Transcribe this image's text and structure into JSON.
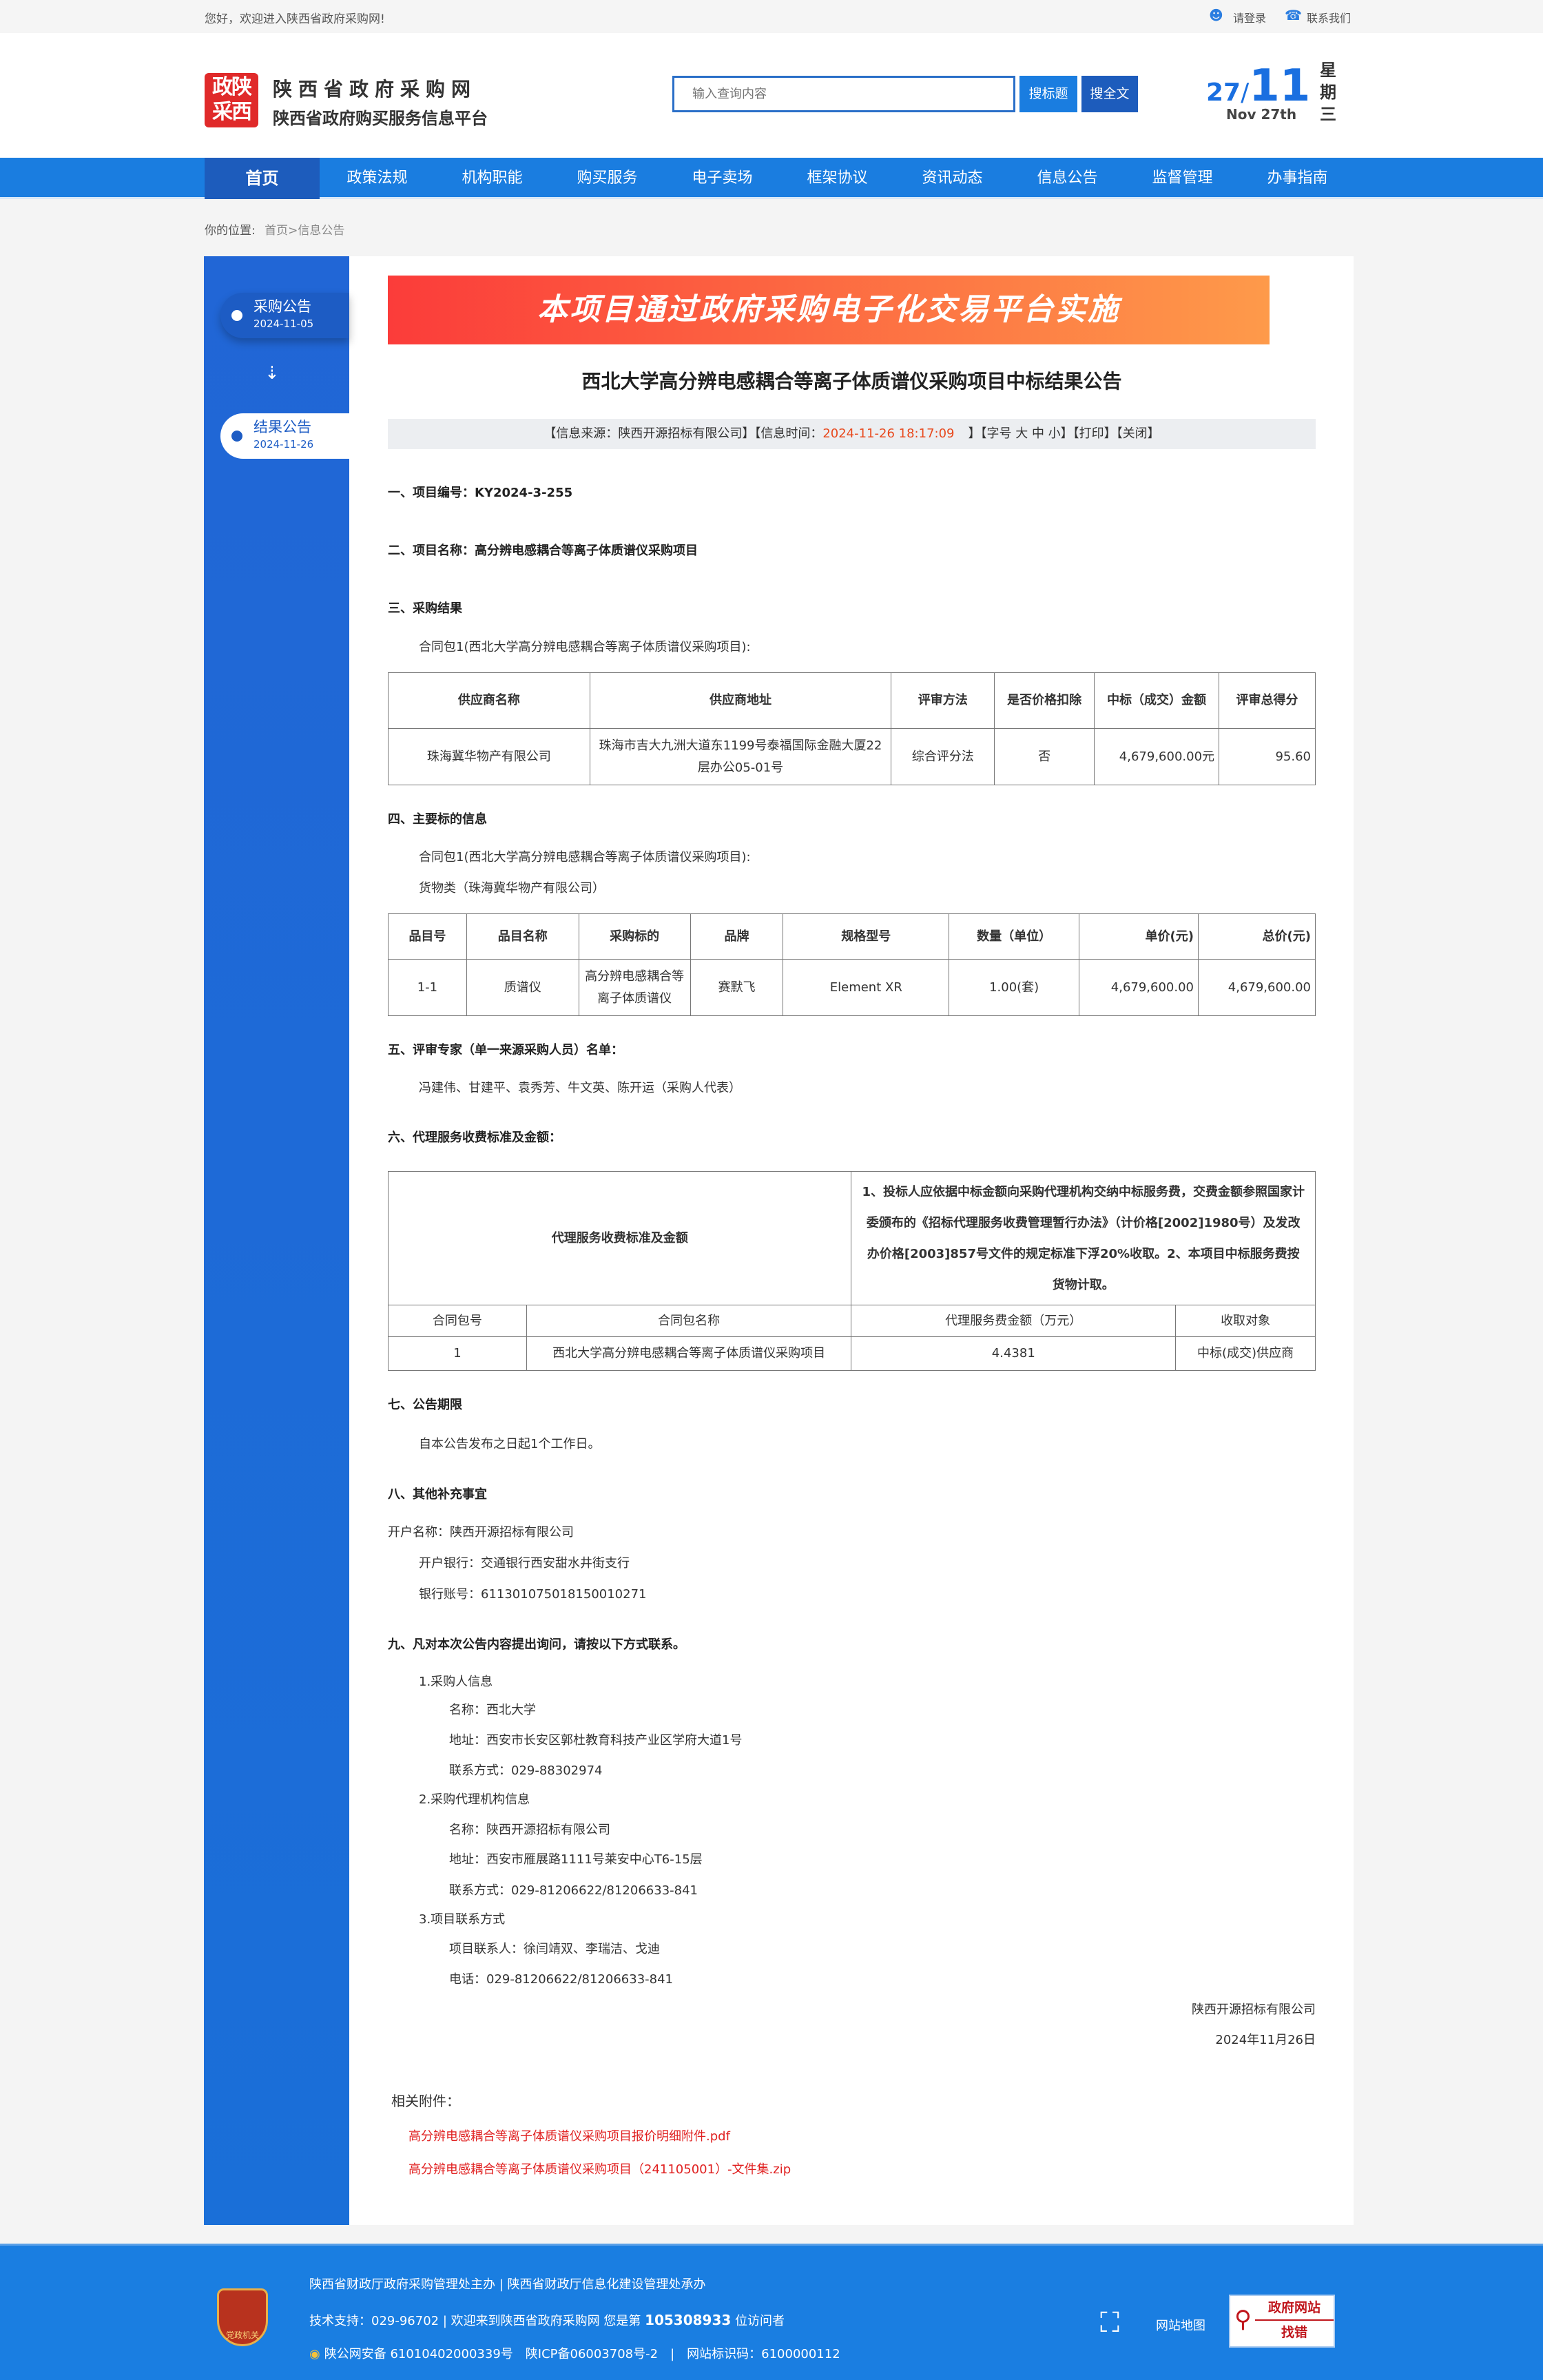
{
  "topbar": {
    "welcome": "您好，欢迎进入陕西省政府采购网!",
    "login": "请登录",
    "contact": "联系我们"
  },
  "header": {
    "logo_text": "政陕采西",
    "site_name": "陕西省政府采购网",
    "subtitle": "陕西省政府购买服务信息平台",
    "search_placeholder": "输入查询内容",
    "search_title_btn": "搜标题",
    "search_full_btn": "搜全文",
    "date_day": "27",
    "date_sep": "/",
    "date_month": "11",
    "date_en": "Nov 27th",
    "weekday": "星期三"
  },
  "nav": [
    "首页",
    "政策法规",
    "机构职能",
    "购买服务",
    "电子卖场",
    "框架协议",
    "资讯动态",
    "信息公告",
    "监督管理",
    "办事指南"
  ],
  "breadcrumb": {
    "label": "你的位置:",
    "home": "首页",
    "current": ">信息公告"
  },
  "sidebar": [
    {
      "label": "采购公告",
      "date": "2024-11-05"
    },
    {
      "label": "结果公告",
      "date": "2024-11-26"
    }
  ],
  "banner": "本项目通过政府采购电子化交易平台实施",
  "title": "西北大学高分辨电感耦合等离子体质谱仪采购项目中标结果公告",
  "info": {
    "source": "【信息来源：陕西开源招标有限公司】【信息时间：",
    "time": "2024-11-26 18:17:09",
    "rest": "】【字号 大 中 小】【打印】【关闭】",
    "color_time": "#e8481c"
  },
  "s1": "一、项目编号：KY2024-3-255",
  "s2": "二、项目名称：高分辨电感耦合等离子体质谱仪采购项目",
  "s3": {
    "title": "三、采购结果",
    "pkg": "合同包1(西北大学高分辨电感耦合等离子体质谱仪采购项目):",
    "headers": [
      "供应商名称",
      "供应商地址",
      "评审方法",
      "是否价格扣除",
      "中标（成交）金额",
      "评审总得分"
    ],
    "row": [
      "珠海冀华物产有限公司",
      "珠海市吉大九洲大道东1199号泰福国际金融大厦22层办公05-01号",
      "综合评分法",
      "否",
      "4,679,600.00元",
      "95.60"
    ]
  },
  "s4": {
    "title": "四、主要标的信息",
    "pkg": "合同包1(西北大学高分辨电感耦合等离子体质谱仪采购项目):",
    "cat": "货物类（珠海冀华物产有限公司）",
    "headers": [
      "品目号",
      "品目名称",
      "采购标的",
      "品牌",
      "规格型号",
      "数量（单位）",
      "单价(元)",
      "总价(元)"
    ],
    "row": [
      "1-1",
      "质谱仪",
      "高分辨电感耦合等离子体质谱仪",
      "赛默飞",
      "Element XR",
      "1.00(套)",
      "4,679,600.00",
      "4,679,600.00"
    ]
  },
  "s5": {
    "title": "五、评审专家（单一来源采购人员）名单：",
    "names": "冯建伟、甘建平、袁秀芳、牛文英、陈开运（采购人代表）"
  },
  "s6": {
    "title": "六、代理服务收费标准及金额：",
    "label": "代理服务收费标准及金额",
    "desc": "1、投标人应依据中标金额向采购代理机构交纳中标服务费，交费金额参照国家计委颁布的《招标代理服务收费管理暂行办法》（计价格[2002]1980号）及发改办价格[2003]857号文件的规定标准下浮20%收取。2、本项目中标服务费按货物计取。",
    "headers": [
      "合同包号",
      "合同包名称",
      "代理服务费金额（万元）",
      "收取对象"
    ],
    "row": [
      "1",
      "西北大学高分辨电感耦合等离子体质谱仪采购项目",
      "4.4381",
      "中标(成交)供应商"
    ]
  },
  "s7": {
    "title": "七、公告期限",
    "text": "自本公告发布之日起1个工作日。"
  },
  "s8": {
    "title": "八、其他补充事宜",
    "account_name": "开户名称：陕西开源招标有限公司",
    "bank": "开户银行：交通银行西安甜水井街支行",
    "account_no": "银行账号：611301075018150010271"
  },
  "s9": {
    "title": "九、凡对本次公告内容提出询问，请按以下方式联系。",
    "p1": "1.采购人信息",
    "p1_name": "名称：西北大学",
    "p1_addr": "地址：西安市长安区郭杜教育科技产业区学府大道1号",
    "p1_tel": "联系方式：029-88302974",
    "p2": "2.采购代理机构信息",
    "p2_name": "名称：陕西开源招标有限公司",
    "p2_addr": "地址：西安市雁展路1111号莱安中心T6-15层",
    "p2_tel": "联系方式：029-81206622/81206633-841",
    "p3": "3.项目联系方式",
    "p3_people": "项目联系人：徐闫靖双、李瑞洁、戈迪",
    "p3_tel": "电话：029-81206622/81206633-841"
  },
  "sign": {
    "company": "陕西开源招标有限公司",
    "date": "2024年11月26日"
  },
  "attachments": {
    "label": "相关附件：",
    "files": [
      "高分辨电感耦合等离子体质谱仪采购项目报价明细附件.pdf",
      "高分辨电感耦合等离子体质谱仪采购项目（241105001）-文件集.zip"
    ]
  },
  "footer": {
    "line1": "陕西省财政厅政府采购管理处主办 | 陕西省财政厅信息化建设管理处承办",
    "line2a": "技术支持：029-96702 | 欢迎来到陕西省政府采购网 您是第 ",
    "visitors": "105308933",
    "line2b": " 位访问者",
    "line3": "陕公网安备 61010402000339号　陕ICP备06003708号-2　|　网站标识码：6100000112",
    "emblem": "党政机关",
    "sitemap": "网站地图",
    "error_a": "政府网站",
    "error_b": "找错"
  }
}
